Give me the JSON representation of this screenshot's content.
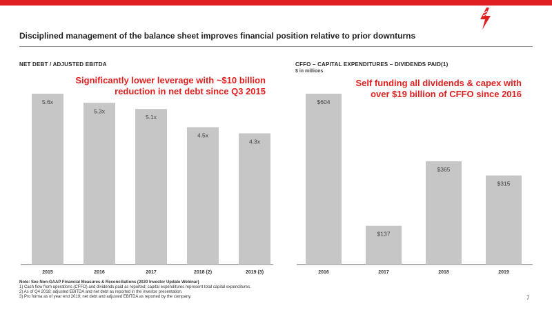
{
  "header": {
    "subtitle": "Disciplined management of the balance sheet improves financial position relative to prior downturns",
    "accent_color": "#e02020",
    "logo_icon": "lightning-bolt-logo"
  },
  "left_panel": {
    "title": "NET DEBT / ADJUSTED EBITDA",
    "callout": [
      "Significantly lower leverage with ~$10 billion",
      "reduction in net debt since Q3 2015"
    ]
  },
  "right_panel": {
    "title": "CFFO – CAPITAL EXPENDITURES – DIVIDENDS PAID(1)",
    "unit": "$ in millions",
    "callout": [
      "Self funding all dividends & capex with",
      "over $19 billion of CFFO since 2016"
    ]
  },
  "chart_data": [
    {
      "type": "bar",
      "title": "NET DEBT / ADJUSTED EBITDA",
      "categories": [
        "2015",
        "2016",
        "2017",
        "2018 (2)",
        "2019 (3)"
      ],
      "values": [
        5.6,
        5.3,
        5.1,
        4.5,
        4.3
      ],
      "value_labels": [
        "5.6x",
        "5.3x",
        "5.1x",
        "4.5x",
        "4.3x"
      ],
      "bar_color": "#c6c6c6",
      "grid": false
    },
    {
      "type": "bar",
      "title": "CFFO – CAPITAL EXPENDITURES – DIVIDENDS PAID(1)",
      "categories": [
        "2016",
        "2017",
        "2018",
        "2019"
      ],
      "values": [
        604,
        137,
        365,
        315
      ],
      "value_labels": [
        "$604",
        "$137",
        "$365",
        "$315"
      ],
      "bar_color": "#c6c6c6",
      "grid": false
    }
  ],
  "footnotes": {
    "lead": "Note: See Non-GAAP Financial Measures & Reconciliations (2020 Investor Update Webinar)",
    "items": [
      "1)  Cash flow from operations (CFFO) and dividends paid as reported; capital expenditures represent total capital expenditures.",
      "2)  As of Q4 2018; adjusted EBITDA and net debt as reported in the investor presentation.",
      "3)  Pro forma as of year end 2019; net debt and adjusted EBITDA as reported by the company."
    ]
  },
  "page_number": "7"
}
